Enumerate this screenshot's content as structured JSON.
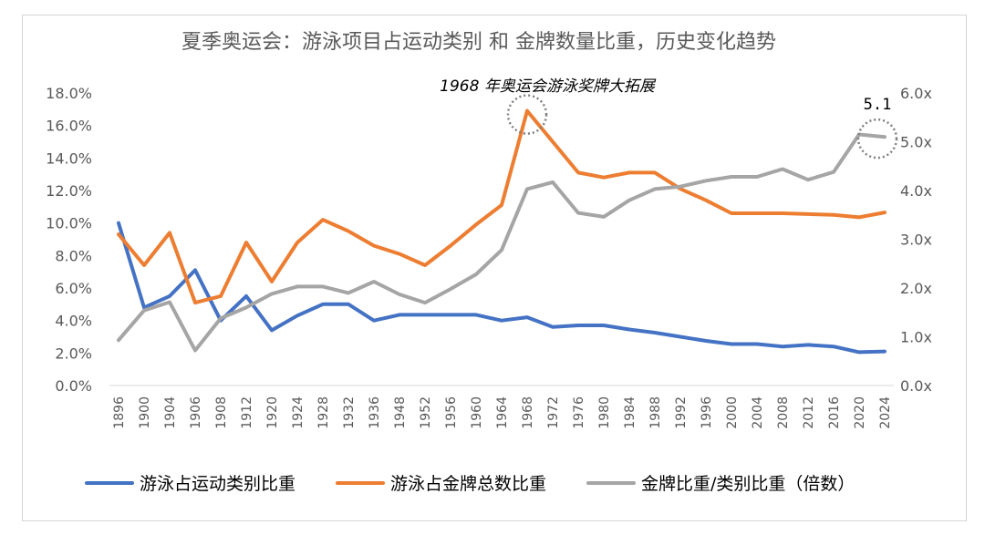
{
  "chart_data": {
    "type": "line",
    "title": "夏季奥运会：游泳项目占运动类别 和 金牌数量比重，历史变化趋势",
    "categories": [
      "1896",
      "1900",
      "1904",
      "1906",
      "1908",
      "1912",
      "1920",
      "1924",
      "1928",
      "1932",
      "1936",
      "1948",
      "1952",
      "1956",
      "1960",
      "1964",
      "1968",
      "1972",
      "1976",
      "1980",
      "1984",
      "1988",
      "1992",
      "1996",
      "2000",
      "2004",
      "2008",
      "2012",
      "2016",
      "2020",
      "2024"
    ],
    "y_left": {
      "ticks": [
        "0.0%",
        "2.0%",
        "4.0%",
        "6.0%",
        "8.0%",
        "10.0%",
        "12.0%",
        "14.0%",
        "16.0%",
        "18.0%"
      ],
      "range": [
        0,
        18
      ]
    },
    "y_right": {
      "ticks": [
        "0.0x",
        "1.0x",
        "2.0x",
        "3.0x",
        "4.0x",
        "5.0x",
        "6.0x"
      ],
      "range": [
        0,
        6
      ]
    },
    "series": [
      {
        "name": "游泳占运动类别比重",
        "axis": "left",
        "color": "#4472C4",
        "values": [
          10.0,
          4.8,
          5.5,
          7.1,
          4.0,
          5.5,
          3.4,
          4.3,
          5.0,
          5.0,
          4.0,
          4.35,
          4.35,
          4.35,
          4.35,
          4.0,
          4.2,
          3.6,
          3.7,
          3.7,
          3.45,
          3.25,
          3.0,
          2.75,
          2.55,
          2.55,
          2.4,
          2.5,
          2.4,
          2.05,
          2.1
        ]
      },
      {
        "name": "游泳占金牌总数比重",
        "axis": "left",
        "color": "#ED7D31",
        "values": [
          9.3,
          7.4,
          9.4,
          5.1,
          5.5,
          8.8,
          6.4,
          8.8,
          10.2,
          9.5,
          8.6,
          8.1,
          7.4,
          8.6,
          9.9,
          11.1,
          16.9,
          15.0,
          13.1,
          12.8,
          13.1,
          13.1,
          12.1,
          11.4,
          10.6,
          10.6,
          10.6,
          10.55,
          10.5,
          10.35,
          10.65
        ]
      },
      {
        "name": "金牌比重/类别比重（倍数）",
        "axis": "right",
        "color": "#A5A5A5",
        "values": [
          0.93,
          1.54,
          1.71,
          0.72,
          1.38,
          1.6,
          1.88,
          2.03,
          2.03,
          1.9,
          2.13,
          1.87,
          1.7,
          1.98,
          2.28,
          2.78,
          4.03,
          4.17,
          3.54,
          3.46,
          3.8,
          4.03,
          4.08,
          4.2,
          4.28,
          4.28,
          4.44,
          4.22,
          4.38,
          5.15,
          5.1
        ]
      }
    ],
    "annotations": [
      {
        "text": "1968 年奥运会游泳奖牌大拓展",
        "category": "1968"
      },
      {
        "text": "5.1",
        "category": "2024"
      }
    ],
    "legend": "bottom",
    "grid": false
  }
}
